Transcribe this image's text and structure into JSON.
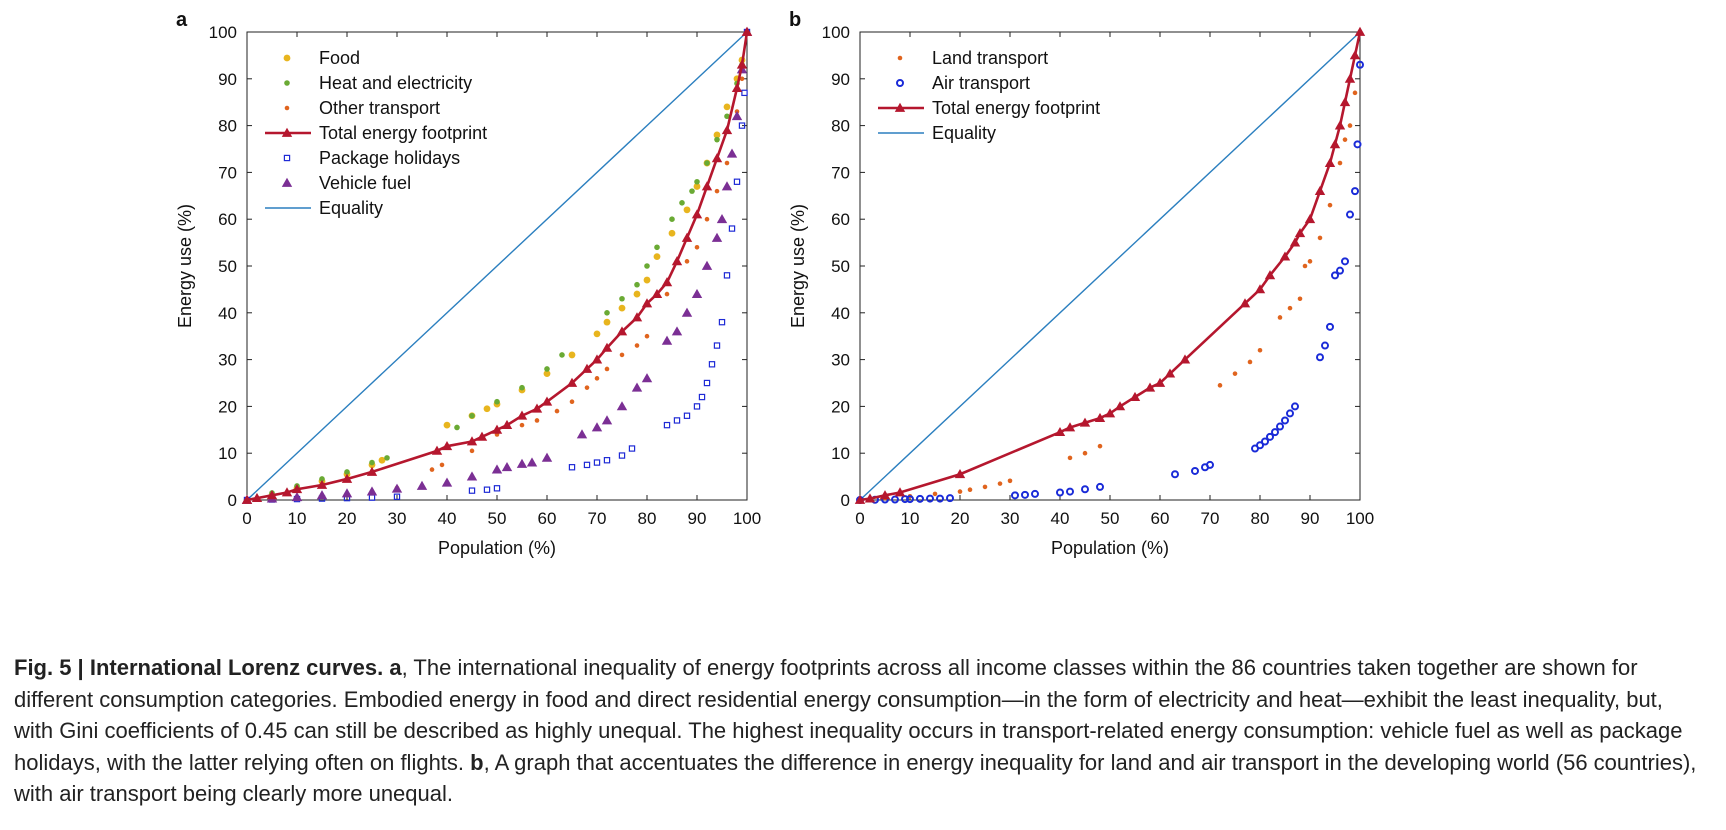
{
  "caption": {
    "label": "Fig. 5 | International Lorenz curves.",
    "segments": [
      {
        "text": "Fig. 5 | International Lorenz curves. ",
        "bold": true
      },
      {
        "text": "a",
        "bold": true
      },
      {
        "text": ", The international inequality of energy footprints across all income classes within the 86 countries taken together are shown for different consumption categories. Embodied energy in food and direct residential energy consumption—in the form of electricity and heat—exhibit the least inequality, but, with Gini coefficients of 0.45 can still be described as highly unequal. The highest inequality occurs in transport-related energy consumption: vehicle fuel as well as package holidays, with the latter relying often on flights. ",
        "bold": false
      },
      {
        "text": "b",
        "bold": true
      },
      {
        "text": ", A graph that accentuates the difference in energy inequality for land and air transport in the developing world (56 countries), with air transport being clearly more unequal.",
        "bold": false
      }
    ]
  },
  "colors": {
    "food": "#e8b51e",
    "heat": "#6aaa34",
    "other_transport": "#e0641e",
    "total": "#b5172e",
    "package": "#1f2bd6",
    "vehicle": "#7b2f94",
    "equality": "#2b7fbf",
    "land": "#e0641e",
    "air": "#1a2bd8"
  },
  "chart_data": [
    {
      "panel_label": "a",
      "type": "scatter",
      "xlabel": "Population (%)",
      "ylabel": "Energy use (%)",
      "xlim": [
        0,
        100
      ],
      "ylim": [
        0,
        100
      ],
      "xticks": [
        "0",
        "10",
        "20",
        "30",
        "40",
        "50",
        "60",
        "70",
        "80",
        "90",
        "100"
      ],
      "yticks": [
        "0",
        "10",
        "20",
        "30",
        "40",
        "50",
        "60",
        "70",
        "80",
        "90",
        "100"
      ],
      "grid": false,
      "legend_position": "top-left",
      "series": [
        {
          "name": "Food",
          "key": "food",
          "marker": "circle",
          "x": [
            0,
            5,
            10,
            15,
            20,
            25,
            27,
            40,
            45,
            48,
            50,
            55,
            60,
            65,
            70,
            72,
            75,
            78,
            80,
            82,
            85,
            88,
            90,
            92,
            94,
            96,
            98,
            99,
            100
          ],
          "y": [
            0,
            1,
            2.5,
            4,
            5.5,
            7.5,
            8.5,
            16,
            18,
            19.5,
            20.5,
            23.5,
            27,
            31,
            35.5,
            38,
            41,
            44,
            47,
            52,
            57,
            62,
            67,
            72,
            78,
            84,
            90,
            94,
            100
          ]
        },
        {
          "name": "Heat and electricity",
          "key": "heat",
          "marker": "dot",
          "x": [
            0,
            5,
            10,
            15,
            20,
            25,
            28,
            42,
            45,
            50,
            55,
            60,
            63,
            72,
            75,
            78,
            80,
            82,
            85,
            87,
            89,
            90,
            92,
            94,
            96,
            98,
            99,
            100
          ],
          "y": [
            0,
            1.5,
            3,
            4.5,
            6,
            8,
            9,
            15.5,
            18,
            21,
            24,
            28,
            31,
            40,
            43,
            46,
            50,
            54,
            60,
            63.5,
            66,
            68,
            72,
            77,
            82,
            89,
            93,
            100
          ]
        },
        {
          "name": "Other transport",
          "key": "other_transport",
          "marker": "smalldot",
          "x": [
            0,
            10,
            15,
            20,
            25,
            30,
            37,
            39,
            45,
            50,
            55,
            58,
            62,
            65,
            68,
            70,
            72,
            75,
            78,
            80,
            84,
            88,
            90,
            92,
            94,
            96,
            98,
            99,
            100
          ],
          "y": [
            0,
            0.4,
            0.8,
            1.3,
            1.9,
            2.6,
            6.5,
            7.5,
            10.5,
            14,
            16,
            17,
            19,
            21,
            24,
            26,
            28,
            31,
            33,
            35,
            44,
            51,
            54,
            60,
            66,
            72,
            83,
            90,
            100
          ]
        },
        {
          "name": "Total energy footprint",
          "key": "total",
          "marker": "triangle-line",
          "x": [
            0,
            2,
            5,
            8,
            10,
            15,
            20,
            25,
            38,
            40,
            45,
            47,
            50,
            52,
            55,
            58,
            60,
            65,
            68,
            70,
            72,
            75,
            78,
            80,
            82,
            84,
            86,
            88,
            90,
            92,
            94,
            96,
            98,
            99,
            100
          ],
          "y": [
            0,
            0.4,
            1,
            1.6,
            2.3,
            3.2,
            4.5,
            6,
            10.5,
            11.5,
            12.5,
            13.5,
            15,
            16,
            18,
            19.5,
            21,
            25,
            28,
            30,
            32.5,
            36,
            39,
            42,
            44,
            46.5,
            51,
            56,
            61,
            67,
            73,
            79,
            88,
            93,
            100
          ]
        },
        {
          "name": "Package holidays",
          "key": "package",
          "marker": "square",
          "x": [
            0,
            5,
            10,
            15,
            20,
            25,
            30,
            45,
            48,
            50,
            65,
            68,
            70,
            72,
            75,
            77,
            84,
            86,
            88,
            90,
            91,
            92,
            93,
            94,
            95,
            96,
            97,
            98,
            99,
            99.5,
            100
          ],
          "y": [
            0,
            0.1,
            0.2,
            0.3,
            0.4,
            0.5,
            0.7,
            2,
            2.2,
            2.5,
            7,
            7.5,
            8,
            8.5,
            9.5,
            11,
            16,
            17,
            18,
            20,
            22,
            25,
            29,
            33,
            38,
            48,
            58,
            68,
            80,
            87,
            100
          ]
        },
        {
          "name": "Vehicle fuel",
          "key": "vehicle",
          "marker": "triangle",
          "x": [
            0,
            5,
            10,
            15,
            20,
            25,
            30,
            35,
            40,
            45,
            50,
            52,
            55,
            57,
            60,
            67,
            70,
            72,
            75,
            78,
            80,
            84,
            86,
            88,
            90,
            92,
            94,
            95,
            96,
            97,
            98,
            99,
            100
          ],
          "y": [
            0,
            0.3,
            0.6,
            1,
            1.4,
            1.8,
            2.4,
            3,
            3.7,
            5,
            6.5,
            7,
            7.7,
            8,
            9,
            14,
            15.5,
            17,
            20,
            24,
            26,
            34,
            36,
            40,
            44,
            50,
            56,
            60,
            67,
            74,
            82,
            92,
            100
          ]
        },
        {
          "name": "Equality",
          "key": "equality",
          "marker": "line",
          "x": [
            0,
            100
          ],
          "y": [
            0,
            100
          ]
        }
      ]
    },
    {
      "panel_label": "b",
      "type": "scatter",
      "xlabel": "Population (%)",
      "ylabel": "Energy use (%)",
      "xlim": [
        0,
        100
      ],
      "ylim": [
        0,
        100
      ],
      "xticks": [
        "0",
        "10",
        "20",
        "30",
        "40",
        "50",
        "60",
        "70",
        "80",
        "90",
        "100"
      ],
      "yticks": [
        "0",
        "10",
        "20",
        "30",
        "40",
        "50",
        "60",
        "70",
        "80",
        "90",
        "100"
      ],
      "grid": false,
      "legend_position": "top-left",
      "series": [
        {
          "name": "Land transport",
          "key": "land",
          "marker": "smalldot",
          "x": [
            0,
            5,
            10,
            15,
            20,
            22,
            25,
            28,
            30,
            42,
            45,
            48,
            72,
            75,
            78,
            80,
            84,
            86,
            88,
            89,
            90,
            92,
            94,
            96,
            97,
            98,
            99,
            100
          ],
          "y": [
            0,
            0.4,
            0.8,
            1.3,
            1.8,
            2.2,
            2.8,
            3.5,
            4.1,
            9,
            10,
            11.5,
            24.5,
            27,
            29.5,
            32,
            39,
            41,
            43,
            50,
            51,
            56,
            63,
            72,
            77,
            80,
            87,
            100
          ]
        },
        {
          "name": "Air transport",
          "key": "air",
          "marker": "ring",
          "x": [
            0,
            3,
            5,
            7,
            9,
            10,
            12,
            14,
            16,
            18,
            31,
            33,
            35,
            40,
            42,
            45,
            48,
            63,
            67,
            69,
            70,
            79,
            80,
            81,
            82,
            83,
            84,
            85,
            86,
            87,
            92,
            93,
            94,
            95,
            96,
            97,
            98,
            99,
            99.5,
            100
          ],
          "y": [
            0,
            0.05,
            0.1,
            0.1,
            0.2,
            0.2,
            0.25,
            0.3,
            0.3,
            0.4,
            1,
            1.1,
            1.3,
            1.6,
            1.8,
            2.3,
            2.8,
            5.5,
            6.2,
            7,
            7.5,
            11,
            11.7,
            12.5,
            13.5,
            14.5,
            15.7,
            17,
            18.5,
            20,
            30.5,
            33,
            37,
            48,
            49,
            51,
            61,
            66,
            76,
            93
          ]
        },
        {
          "name": "Total energy footprint",
          "key": "total",
          "marker": "triangle-line",
          "x": [
            0,
            2,
            5,
            8,
            20,
            40,
            42,
            45,
            48,
            50,
            52,
            55,
            58,
            60,
            62,
            65,
            77,
            80,
            82,
            85,
            87,
            88,
            90,
            92,
            94,
            95,
            96,
            97,
            98,
            99,
            100
          ],
          "y": [
            0,
            0.3,
            1,
            1.6,
            5.5,
            14.5,
            15.5,
            16.5,
            17.5,
            18.5,
            20,
            22,
            24,
            25,
            27,
            30,
            42,
            45,
            48,
            52,
            55,
            57,
            60,
            66,
            72,
            76,
            80,
            85,
            90,
            95,
            100
          ]
        },
        {
          "name": "Equality",
          "key": "equality",
          "marker": "line",
          "x": [
            0,
            100
          ],
          "y": [
            0,
            100
          ]
        }
      ]
    }
  ]
}
